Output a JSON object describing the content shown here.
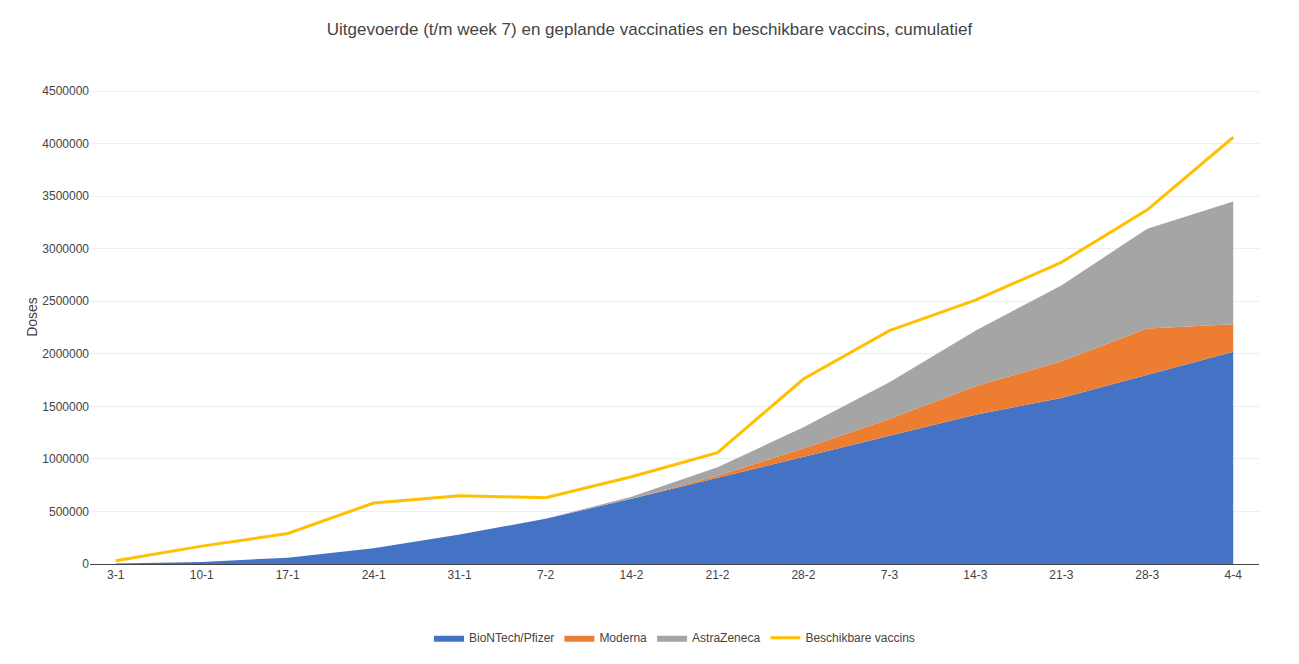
{
  "chart_data": {
    "type": "area",
    "stacked": true,
    "title": "Uitgevoerde (t/m week 7) en geplande vaccinaties en beschikbare vaccins, cumulatief",
    "ylabel": "Doses",
    "categories": [
      "3-1",
      "10-1",
      "17-1",
      "24-1",
      "31-1",
      "7-2",
      "14-2",
      "21-2",
      "28-2",
      "7-3",
      "14-3",
      "21-3",
      "28-3",
      "4-4"
    ],
    "series": [
      {
        "name": "BioNTech/Pfizer",
        "color": "#4472C4",
        "type": "area",
        "values": [
          5000,
          20000,
          60000,
          150000,
          280000,
          430000,
          620000,
          820000,
          1020000,
          1220000,
          1420000,
          1580000,
          1800000,
          2020000
        ]
      },
      {
        "name": "Moderna",
        "color": "#ED7D31",
        "type": "area",
        "values": [
          0,
          0,
          0,
          0,
          0,
          0,
          0,
          20000,
          80000,
          160000,
          270000,
          350000,
          440000,
          260000
        ]
      },
      {
        "name": "AstraZeneca",
        "color": "#A5A5A5",
        "type": "area",
        "values": [
          0,
          0,
          0,
          0,
          0,
          0,
          20000,
          80000,
          200000,
          350000,
          530000,
          720000,
          950000,
          1170000
        ]
      },
      {
        "name": "Beschikbare vaccins",
        "color": "#FFC000",
        "type": "line",
        "values": [
          30000,
          170000,
          290000,
          580000,
          650000,
          630000,
          830000,
          1060000,
          1760000,
          2220000,
          2510000,
          2870000,
          3370000,
          4060000
        ]
      }
    ],
    "ylim": [
      0,
      4700000
    ],
    "yticks": [
      0,
      500000,
      1000000,
      1500000,
      2000000,
      2500000,
      3000000,
      3500000,
      4000000,
      4500000
    ],
    "grid": true,
    "legend": "bottom"
  }
}
